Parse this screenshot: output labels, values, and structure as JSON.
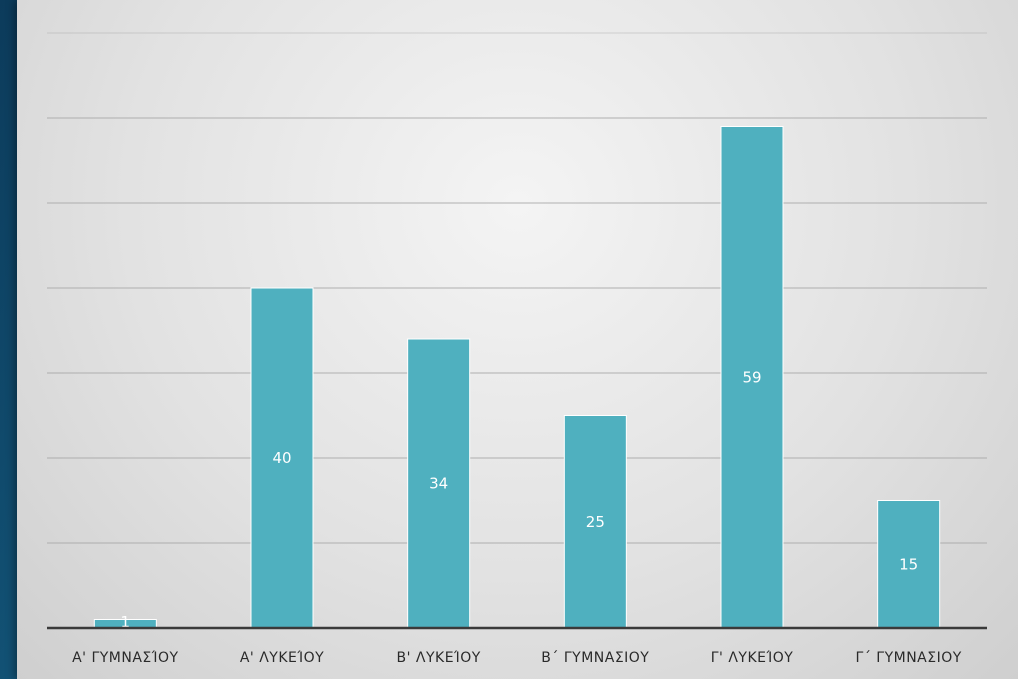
{
  "chart_data": {
    "type": "bar",
    "categories": [
      "Α' ΓΥΜΝΑΣΊΟΥ",
      "Α' ΛΥΚΕΊΟΥ",
      "Β' ΛΥΚΕΊΟΥ",
      "Β΄ ΓΥΜΝΑΣΙΟΥ",
      "Γ' ΛΥΚΕΊΟΥ",
      "Γ΄ ΓΥΜΝΑΣΙΟΥ"
    ],
    "values": [
      1,
      40,
      34,
      25,
      59,
      15
    ],
    "title": "",
    "xlabel": "",
    "ylabel": "",
    "ylim": [
      0,
      70
    ],
    "y_gridline_step": 10,
    "grid": true,
    "data_labels": true,
    "bar_color": "#4fb0bf",
    "baseline_color": "#3a3a3a",
    "gridline_color": "#a9a9a9"
  }
}
